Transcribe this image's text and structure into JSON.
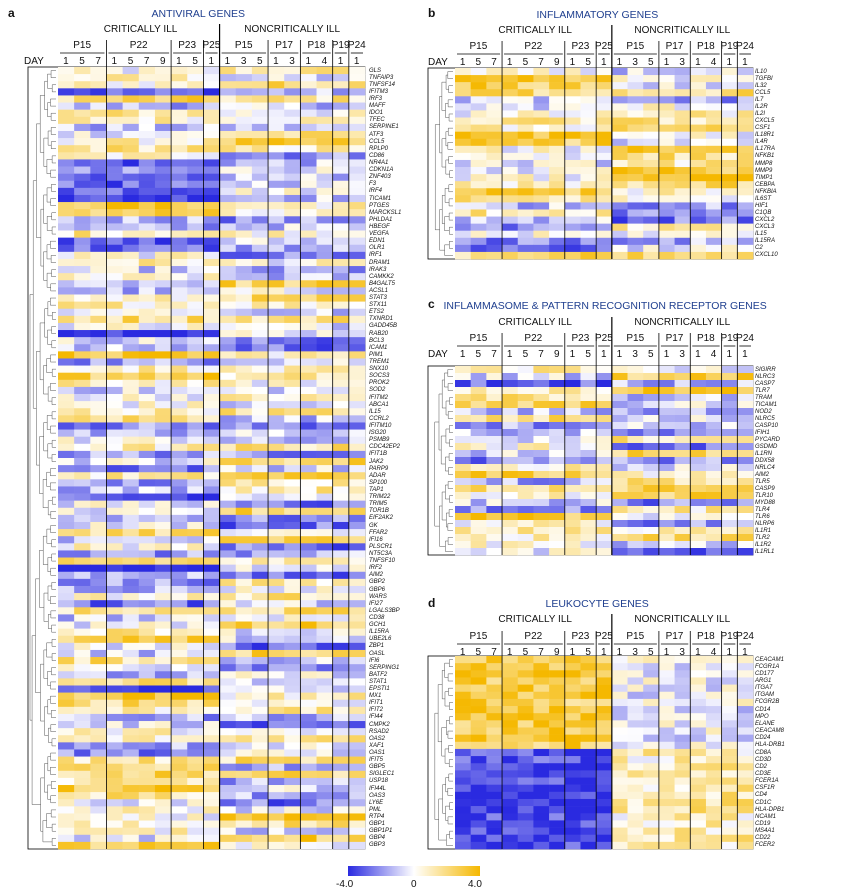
{
  "chart_data": [
    {
      "type": "heatmap",
      "panel_label": "a",
      "title": "ANTIVIRAL GENES",
      "group_labels": [
        "CRITICALLY ILL",
        "NONCRITICALLY ILL"
      ],
      "day_label": "DAY",
      "patients": [
        {
          "name": "P15",
          "days": [
            "1",
            "5",
            "7"
          ]
        },
        {
          "name": "P22",
          "days": [
            "1",
            "5",
            "7",
            "9"
          ]
        },
        {
          "name": "P23",
          "days": [
            "1",
            "5"
          ]
        },
        {
          "name": "P25",
          "days": [
            "1"
          ]
        },
        {
          "name": "P15",
          "days": [
            "1",
            "3",
            "5"
          ]
        },
        {
          "name": "P17",
          "days": [
            "1",
            "3"
          ]
        },
        {
          "name": "P18",
          "days": [
            "1",
            "4"
          ]
        },
        {
          "name": "P19",
          "days": [
            "1"
          ]
        },
        {
          "name": "P24",
          "days": [
            "1"
          ]
        }
      ],
      "genes": [
        "GLS",
        "TNFAIP3",
        "TNFSF14",
        "IFITM3",
        "IRF3",
        "MAFF",
        "IDO1",
        "TFEC",
        "SERPINE1",
        "ATF3",
        "CCL5",
        "RPLP0",
        "CD86",
        "NR4A1",
        "CDKN1A",
        "ZNF403",
        "F3",
        "IRF4",
        "TICAM1",
        "PTGES",
        "MARCKSL1",
        "PHLDA1",
        "HBEGF",
        "VEGFA",
        "EDN1",
        "OLR1",
        "IRF1",
        "DRAM1",
        "IRAK3",
        "CAMKK2",
        "B4GALT5",
        "ACSL1",
        "STAT3",
        "STX11",
        "ETS2",
        "TXNRD1",
        "GADD45B",
        "RAB20",
        "BCL3",
        "ICAM1",
        "PIM1",
        "TREM1",
        "SNX10",
        "SOCS3",
        "PROK2",
        "SOD2",
        "IFITM2",
        "ABCA1",
        "IL15",
        "CCRL2",
        "IFITM10",
        "ISG20",
        "PSMB9",
        "CDC42EP2",
        "IFIT1B",
        "JAK2",
        "PARP9",
        "ADAR",
        "SP100",
        "TAP1",
        "TRIM22",
        "TRIM5",
        "TOR1B",
        "EIF2AK2",
        "GK",
        "FFAR2",
        "IFI16",
        "PLSCR1",
        "NT5C3A",
        "TNFSF10",
        "IRF2",
        "AIM2",
        "GBP2",
        "GBP6",
        "WARS",
        "IFI27",
        "LGALS3BP",
        "CD38",
        "GCH1",
        "IL15RA",
        "UBE2L6",
        "ZBP1",
        "OASL",
        "IFI6",
        "SERPING1",
        "BATF2",
        "STAT1",
        "EPSTI1",
        "MX1",
        "IFIT1",
        "IFIT2",
        "IFI44",
        "CMPK2",
        "RSAD2",
        "OAS2",
        "XAF1",
        "OAS1",
        "IFIT5",
        "GBP5",
        "SIGLEC1",
        "USP18",
        "IFI44L",
        "OAS3",
        "LY6E",
        "PML",
        "RTP4",
        "GBP1",
        "GBP1P1",
        "GBP4",
        "GBP3"
      ],
      "pattern": "mixed",
      "vrange": [
        -4.0,
        4.0
      ]
    },
    {
      "type": "heatmap",
      "panel_label": "b",
      "title": "INFLAMMATORY GENES",
      "group_labels": [
        "CRITICALLY ILL",
        "NONCRITICALLY ILL"
      ],
      "day_label": "DAY",
      "patients": [
        {
          "name": "P15",
          "days": [
            "1",
            "5",
            "7"
          ]
        },
        {
          "name": "P22",
          "days": [
            "1",
            "5",
            "7",
            "9"
          ]
        },
        {
          "name": "P23",
          "days": [
            "1",
            "5"
          ]
        },
        {
          "name": "P25",
          "days": [
            "1"
          ]
        },
        {
          "name": "P15",
          "days": [
            "1",
            "3",
            "5"
          ]
        },
        {
          "name": "P17",
          "days": [
            "1",
            "3"
          ]
        },
        {
          "name": "P18",
          "days": [
            "1",
            "4"
          ]
        },
        {
          "name": "P19",
          "days": [
            "1"
          ]
        },
        {
          "name": "P24",
          "days": [
            "1"
          ]
        }
      ],
      "genes": [
        "IL10",
        "TGFBI",
        "IL32",
        "CCL5",
        "IL7",
        "IL2R",
        "IL2I",
        "CXCL5",
        "CSF1",
        "IL18R1",
        "IL4R",
        "IL17RA",
        "NFKB1",
        "MMP8",
        "MMP9",
        "TIMP1",
        "CEBPA",
        "NFKBIA",
        "IL6ST",
        "HIF1",
        "C1QB",
        "CXCL2",
        "CXCL3",
        "IL15",
        "IL15RA",
        "C2",
        "CXCL10"
      ],
      "pattern": "mixed",
      "vrange": [
        -4.0,
        4.0
      ]
    },
    {
      "type": "heatmap",
      "panel_label": "c",
      "title": "INFLAMMASOME & PATTERN RECOGNITION RECEPTOR GENES",
      "group_labels": [
        "CRITICALLY ILL",
        "NONCRITICALLY ILL"
      ],
      "day_label": "DAY",
      "patients": [
        {
          "name": "P15",
          "days": [
            "1",
            "5",
            "7"
          ]
        },
        {
          "name": "P22",
          "days": [
            "1",
            "5",
            "7",
            "9"
          ]
        },
        {
          "name": "P23",
          "days": [
            "1",
            "5"
          ]
        },
        {
          "name": "P25",
          "days": [
            "1"
          ]
        },
        {
          "name": "P15",
          "days": [
            "1",
            "3",
            "5"
          ]
        },
        {
          "name": "P17",
          "days": [
            "1",
            "3"
          ]
        },
        {
          "name": "P18",
          "days": [
            "1",
            "4"
          ]
        },
        {
          "name": "P19",
          "days": [
            "1"
          ]
        },
        {
          "name": "P24",
          "days": [
            "1"
          ]
        }
      ],
      "genes": [
        "SIGIRR",
        "NLRC3",
        "CASP7",
        "TLR7",
        "TRAM",
        "TICAM1",
        "NOD2",
        "NLRC5",
        "CASP10",
        "IFIH1",
        "PYCARD",
        "GSDMD",
        "IL1RN",
        "DDX58",
        "NRLC4",
        "AIM2",
        "TLR5",
        "CASP9",
        "TLR10",
        "MYD88",
        "TLR4",
        "TLR6",
        "NLRP6",
        "IL1R1",
        "TLR2",
        "IL1R2",
        "IL1RL1"
      ],
      "pattern": "mixed",
      "vrange": [
        -4.0,
        4.0
      ]
    },
    {
      "type": "heatmap",
      "panel_label": "d",
      "title": "LEUKOCYTE GENES",
      "group_labels": [
        "CRITICALLY ILL",
        "NONCRITICALLY ILL"
      ],
      "day_label": "",
      "patients": [
        {
          "name": "P15",
          "days": [
            "1",
            "5",
            "7"
          ]
        },
        {
          "name": "P22",
          "days": [
            "1",
            "5",
            "7",
            "9"
          ]
        },
        {
          "name": "P23",
          "days": [
            "1",
            "5"
          ]
        },
        {
          "name": "P25",
          "days": [
            "1"
          ]
        },
        {
          "name": "P15",
          "days": [
            "1",
            "3",
            "5"
          ]
        },
        {
          "name": "P17",
          "days": [
            "1",
            "3"
          ]
        },
        {
          "name": "P18",
          "days": [
            "1",
            "4"
          ]
        },
        {
          "name": "P19",
          "days": [
            "1"
          ]
        },
        {
          "name": "P24",
          "days": [
            "1"
          ]
        }
      ],
      "genes": [
        "CEACAM1",
        "FCGR1A",
        "CD177",
        "ARG1",
        "ITGA7",
        "ITGAM",
        "FCGR2B",
        "CD14",
        "MPO",
        "ELANE",
        "CEACAM8",
        "CD24",
        "HLA-DRB1",
        "CD8A",
        "CD3D",
        "CD2",
        "CD3E",
        "FCER1A",
        "CSF1R",
        "CD4",
        "CD1C",
        "HLA-DPB1",
        "NCAM1",
        "CD19",
        "MS4A1",
        "CD22",
        "FCER2"
      ],
      "pattern": "split",
      "vrange": [
        -4.0,
        4.0
      ]
    }
  ],
  "colorbar": {
    "min_label": "-4.0",
    "mid_label": "0",
    "max_label": "4.0",
    "low_color": "#2a2ae0",
    "mid_color": "#ffffff",
    "high_color": "#f5b800"
  }
}
